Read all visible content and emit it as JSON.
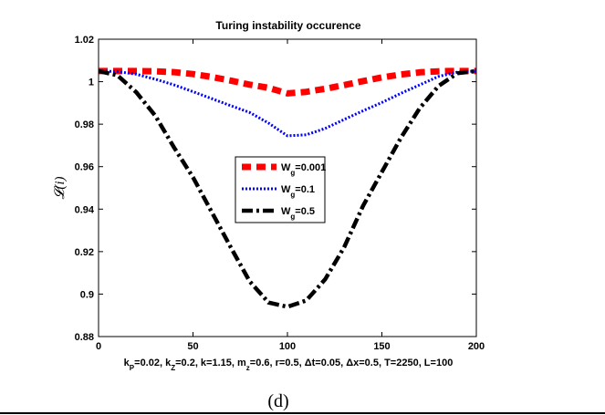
{
  "panel_label": "(d)",
  "chart_data": {
    "type": "line",
    "title": "Turing instability occurence",
    "xlabel": "k_P=0.02, k_Z=0.2, k=1.15, m_z=0.6, r=0.5, Δt=0.05, Δx=0.5, T=2250, L=100",
    "xlabel_parts": [
      {
        "t": "k"
      },
      {
        "t": "P",
        "sub": true
      },
      {
        "t": "=0.02, k"
      },
      {
        "t": "Z",
        "sub": true
      },
      {
        "t": "=0.2, k=1.15, m"
      },
      {
        "t": "z",
        "sub": true
      },
      {
        "t": "=0.6, r=0.5, Δt=0.05, Δx=0.5, T=2250, L=100"
      }
    ],
    "ylabel": "𝓛(i)",
    "xlim": [
      0,
      200
    ],
    "ylim": [
      0.88,
      1.02
    ],
    "xticks": [
      0,
      50,
      100,
      150,
      200
    ],
    "yticks": [
      0.88,
      0.9,
      0.92,
      0.94,
      0.96,
      0.98,
      1,
      1.02
    ],
    "xtick_labels": [
      "0",
      "50",
      "100",
      "150",
      "200"
    ],
    "ytick_labels": [
      "0.88",
      "0.9",
      "0.92",
      "0.94",
      "0.96",
      "0.98",
      "1",
      "1.02"
    ],
    "grid": false,
    "legend_position": "center",
    "series": [
      {
        "name": "W_g=0.001",
        "legend_parts": [
          {
            "t": "W"
          },
          {
            "t": "g",
            "sub": true
          },
          {
            "t": "=0.001"
          }
        ],
        "color": "#ff0000",
        "style": "dashed",
        "x": [
          0,
          15,
          20,
          30,
          40,
          50,
          60,
          70,
          80,
          90,
          100,
          110,
          120,
          130,
          140,
          150,
          160,
          170,
          180,
          185,
          200
        ],
        "y": [
          1.005,
          1.005,
          1.005,
          1.0049,
          1.0045,
          1.0036,
          1.0022,
          1.0005,
          0.9986,
          0.9971,
          0.9945,
          0.9952,
          0.9967,
          0.9984,
          1.0003,
          1.002,
          1.0034,
          1.0044,
          1.0049,
          1.005,
          1.005
        ]
      },
      {
        "name": "W_g=0.1",
        "legend_parts": [
          {
            "t": "W"
          },
          {
            "t": "g",
            "sub": true
          },
          {
            "t": "=0.1"
          }
        ],
        "color": "#0000ff",
        "style": "dotted",
        "x": [
          0,
          10,
          20,
          30,
          40,
          50,
          60,
          70,
          80,
          90,
          100,
          110,
          120,
          130,
          140,
          150,
          160,
          170,
          180,
          190,
          200
        ],
        "y": [
          1.005,
          1.0048,
          1.0035,
          1.0012,
          0.9985,
          0.9953,
          0.992,
          0.9887,
          0.9855,
          0.9805,
          0.9745,
          0.975,
          0.978,
          0.9822,
          0.9863,
          0.9902,
          0.9945,
          0.9985,
          1.0025,
          1.0045,
          1.005
        ]
      },
      {
        "name": "W_g=0.5",
        "legend_parts": [
          {
            "t": "W"
          },
          {
            "t": "g",
            "sub": true
          },
          {
            "t": "=0.5"
          }
        ],
        "color": "#000000",
        "style": "dashdot",
        "x": [
          0,
          10,
          20,
          30,
          40,
          50,
          60,
          70,
          80,
          90,
          100,
          110,
          120,
          130,
          140,
          150,
          160,
          170,
          180,
          190,
          200
        ],
        "y": [
          1.005,
          1.003,
          0.995,
          0.984,
          0.969,
          0.955,
          0.9385,
          0.922,
          0.906,
          0.896,
          0.894,
          0.897,
          0.907,
          0.922,
          0.9415,
          0.9575,
          0.9735,
          0.9875,
          0.998,
          1.004,
          1.005
        ]
      }
    ]
  }
}
